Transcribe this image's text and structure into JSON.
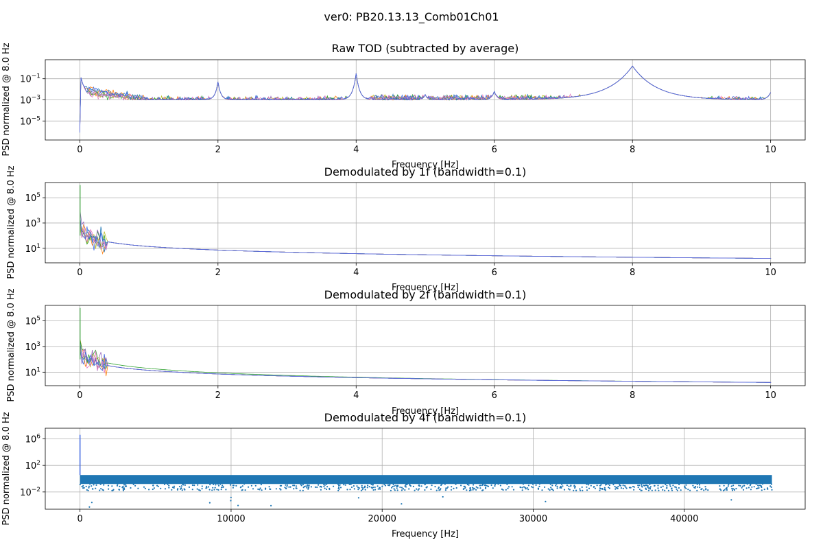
{
  "figure": {
    "suptitle": "ver0: PB20.13.13_Comb01Ch01"
  },
  "chart_data": [
    {
      "type": "line",
      "title": "Raw TOD (subtracted by average)",
      "xlabel": "Frequency [Hz]",
      "ylabel": "PSD normalized @ 8.0 Hz",
      "xlim": [
        -0.5,
        10.5
      ],
      "ylim_log10": [
        -6.8,
        0.8
      ],
      "y_scale": "log",
      "grid": true,
      "xticks": [
        0,
        2,
        4,
        6,
        8,
        10
      ],
      "xtick_labels": [
        "0",
        "2",
        "4",
        "6",
        "8",
        "10"
      ],
      "yticks_log10": [
        -5,
        -3,
        -1
      ],
      "ytick_labels": [
        "10",
        "10",
        "10"
      ],
      "ytick_exponents": [
        "−5",
        "−3",
        "−1"
      ],
      "peaks_hz": [
        0,
        2,
        4,
        5,
        6,
        8,
        10
      ],
      "series_colors": [
        "#ff7f0e",
        "#bcbd22",
        "#2ca02c",
        "#1f77b4",
        "#9467bd",
        "#e377c2",
        "#4169e1"
      ]
    },
    {
      "type": "line",
      "title": "Demodulated by 1f (bandwidth=0.1)",
      "xlabel": "Frequency [Hz]",
      "ylabel": "PSD normalized @ 8.0 Hz",
      "xlim": [
        -0.5,
        10.5
      ],
      "ylim_log10": [
        -0.15,
        6.2
      ],
      "y_scale": "log",
      "grid": true,
      "xticks": [
        0,
        2,
        4,
        6,
        8,
        10
      ],
      "xtick_labels": [
        "0",
        "2",
        "4",
        "6",
        "8",
        "10"
      ],
      "yticks_log10": [
        1,
        3,
        5
      ],
      "ytick_labels": [
        "10",
        "10",
        "10"
      ],
      "ytick_exponents": [
        "1",
        "3",
        "5"
      ],
      "series_colors": [
        "#ff7f0e",
        "#bcbd22",
        "#2ca02c",
        "#1f77b4",
        "#9467bd",
        "#e377c2",
        "#4169e1"
      ]
    },
    {
      "type": "line",
      "title": "Demodulated by 2f (bandwidth=0.1)",
      "xlabel": "Frequency [Hz]",
      "ylabel": "PSD normalized @ 8.0 Hz",
      "xlim": [
        -0.5,
        10.5
      ],
      "ylim_log10": [
        -0.05,
        6.2
      ],
      "y_scale": "log",
      "grid": true,
      "xticks": [
        0,
        2,
        4,
        6,
        8,
        10
      ],
      "xtick_labels": [
        "0",
        "2",
        "4",
        "6",
        "8",
        "10"
      ],
      "yticks_log10": [
        1,
        3,
        5
      ],
      "ytick_labels": [
        "10",
        "10",
        "10"
      ],
      "ytick_exponents": [
        "1",
        "3",
        "5"
      ],
      "series_colors": [
        "#ff7f0e",
        "#bcbd22",
        "#2ca02c",
        "#1f77b4",
        "#9467bd",
        "#e377c2",
        "#4169e1"
      ]
    },
    {
      "type": "scatter",
      "title": "Demodulated by 4f (bandwidth=0.1)",
      "xlabel": "Frequency [Hz]",
      "ylabel": "PSD normalized @ 8.0 Hz",
      "xlim": [
        -2300,
        48000
      ],
      "ylim_log10": [
        -4.6,
        7.6
      ],
      "y_scale": "log",
      "grid": true,
      "xticks": [
        0,
        10000,
        20000,
        30000,
        40000
      ],
      "xtick_labels": [
        "0",
        "10000",
        "20000",
        "30000",
        "40000"
      ],
      "yticks_log10": [
        -2,
        2,
        6
      ],
      "ytick_labels": [
        "10",
        "10",
        "10"
      ],
      "ytick_exponents": [
        "−2",
        "2",
        "6"
      ],
      "x_max_data": 45800,
      "band_log10": [
        -0.8,
        0.55
      ],
      "series_colors": [
        "#1f77b4",
        "#4169e1"
      ]
    }
  ]
}
